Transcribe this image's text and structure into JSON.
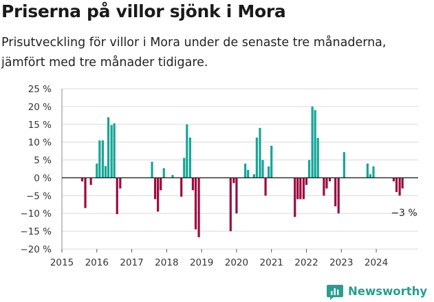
{
  "title": "Priserna på villor sjönk i Mora",
  "subtitle": "Prisutveckling för villor i Mora under de senaste tre månaderna, jämfört med tre månader tidigare.",
  "brand": "Newsworthy",
  "colors": {
    "positive": "#17a597",
    "negative": "#9c0a3f",
    "grid": "#d9d9d9",
    "zero": "#222222",
    "brand": "#2a9d8f"
  },
  "icons": {
    "brand": "newsworthy-chart-logo-icon"
  },
  "chart_data": {
    "type": "bar",
    "title": "Priserna på villor sjönk i Mora",
    "xlabel": "",
    "ylabel": "",
    "ylim": [
      -20,
      25
    ],
    "xlim": [
      2015.0,
      2025.2
    ],
    "y_ticks": [
      {
        "value": 25,
        "label": "25 %"
      },
      {
        "value": 20,
        "label": "20 %"
      },
      {
        "value": 15,
        "label": "15 %"
      },
      {
        "value": 10,
        "label": "10 %"
      },
      {
        "value": 5,
        "label": "5 %"
      },
      {
        "value": 0,
        "label": "0 %"
      },
      {
        "value": -5,
        "label": "−5 %"
      },
      {
        "value": -10,
        "label": "−10 %"
      },
      {
        "value": -15,
        "label": "−15 %"
      },
      {
        "value": -20,
        "label": "−20 %"
      }
    ],
    "x_ticks": [
      "2015",
      "2016",
      "2017",
      "2018",
      "2019",
      "2020",
      "2021",
      "2022",
      "2023",
      "2024"
    ],
    "grid": "horizontal",
    "annotation": {
      "text": "−3 %",
      "x": 2024.6,
      "y": -3
    },
    "points": [
      {
        "x": 2015.58,
        "y": -1
      },
      {
        "x": 2015.67,
        "y": -8.5
      },
      {
        "x": 2015.83,
        "y": -2
      },
      {
        "x": 2016.0,
        "y": 4
      },
      {
        "x": 2016.08,
        "y": 10.5
      },
      {
        "x": 2016.17,
        "y": 10.5
      },
      {
        "x": 2016.25,
        "y": 3.3
      },
      {
        "x": 2016.33,
        "y": 17
      },
      {
        "x": 2016.42,
        "y": 14.8
      },
      {
        "x": 2016.5,
        "y": 15.3
      },
      {
        "x": 2016.58,
        "y": -10.2
      },
      {
        "x": 2016.67,
        "y": -3
      },
      {
        "x": 2017.58,
        "y": 4.5
      },
      {
        "x": 2017.67,
        "y": -6
      },
      {
        "x": 2017.75,
        "y": -9.5
      },
      {
        "x": 2017.83,
        "y": -3.5
      },
      {
        "x": 2017.92,
        "y": 2.7
      },
      {
        "x": 2018.17,
        "y": 0.8
      },
      {
        "x": 2018.42,
        "y": -5.3
      },
      {
        "x": 2018.5,
        "y": 5.6
      },
      {
        "x": 2018.58,
        "y": 15
      },
      {
        "x": 2018.67,
        "y": 11.3
      },
      {
        "x": 2018.75,
        "y": -3.5
      },
      {
        "x": 2018.83,
        "y": -14.5
      },
      {
        "x": 2018.92,
        "y": -16.7
      },
      {
        "x": 2019.83,
        "y": -15
      },
      {
        "x": 2019.92,
        "y": -1.5
      },
      {
        "x": 2020.0,
        "y": -10
      },
      {
        "x": 2020.25,
        "y": 4
      },
      {
        "x": 2020.33,
        "y": 2.2
      },
      {
        "x": 2020.5,
        "y": 1
      },
      {
        "x": 2020.58,
        "y": 11.3
      },
      {
        "x": 2020.67,
        "y": 14
      },
      {
        "x": 2020.75,
        "y": 5
      },
      {
        "x": 2020.83,
        "y": -5
      },
      {
        "x": 2020.92,
        "y": 3.2
      },
      {
        "x": 2021.0,
        "y": 9
      },
      {
        "x": 2021.67,
        "y": -11
      },
      {
        "x": 2021.75,
        "y": -6
      },
      {
        "x": 2021.83,
        "y": -6
      },
      {
        "x": 2021.92,
        "y": -6
      },
      {
        "x": 2022.0,
        "y": -2
      },
      {
        "x": 2022.08,
        "y": 5
      },
      {
        "x": 2022.17,
        "y": 20
      },
      {
        "x": 2022.25,
        "y": 19
      },
      {
        "x": 2022.33,
        "y": 11.2
      },
      {
        "x": 2022.5,
        "y": -5
      },
      {
        "x": 2022.58,
        "y": -3
      },
      {
        "x": 2022.67,
        "y": -1
      },
      {
        "x": 2022.83,
        "y": -8
      },
      {
        "x": 2022.92,
        "y": -10
      },
      {
        "x": 2023.08,
        "y": 7.2
      },
      {
        "x": 2023.75,
        "y": 4
      },
      {
        "x": 2023.83,
        "y": 1
      },
      {
        "x": 2023.92,
        "y": 3.2
      },
      {
        "x": 2024.5,
        "y": -1
      },
      {
        "x": 2024.58,
        "y": -4
      },
      {
        "x": 2024.67,
        "y": -5
      },
      {
        "x": 2024.75,
        "y": -3
      }
    ]
  }
}
